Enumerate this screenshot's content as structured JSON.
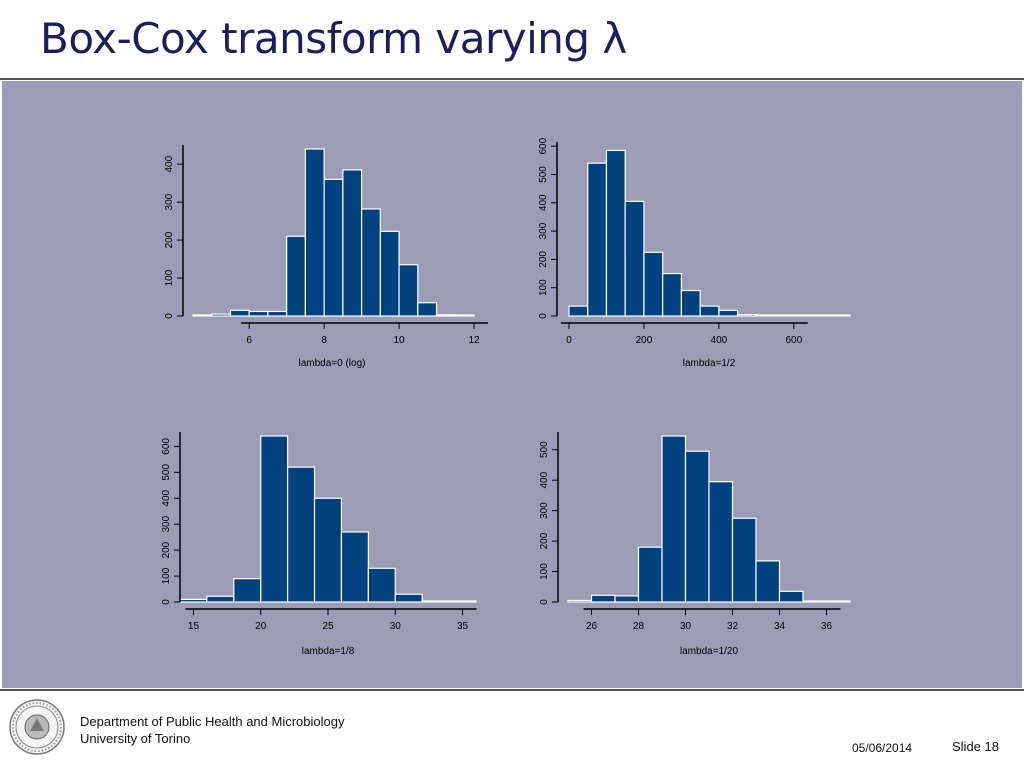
{
  "slide": {
    "title": "Box-Cox transform varying λ",
    "footer_department": "Department of Public Health and Microbiology",
    "footer_university": "University of Torino",
    "date": "05/06/2014",
    "slide_number": "Slide 18",
    "logo_icon": "university-seal-icon"
  },
  "colors": {
    "bar_fill": "#04417f",
    "bar_stroke": "#ffffff",
    "panel_bg": "#9c9cb6",
    "axis": "#000000",
    "title": "#1a1f5c"
  },
  "chart_data": [
    {
      "type": "bar",
      "xlabel": "lambda=0 (log)",
      "ylabel": "",
      "xlim": [
        4.5,
        12
      ],
      "ylim": [
        0,
        440
      ],
      "xticks": [
        6,
        8,
        10,
        12
      ],
      "yticks": [
        0,
        100,
        200,
        300,
        400
      ],
      "bin_edges": [
        4.5,
        5,
        5.5,
        6,
        6.5,
        7,
        7.5,
        8,
        8.5,
        9,
        9.5,
        10,
        10.5,
        11,
        11.5,
        12
      ],
      "values": [
        2,
        5,
        15,
        12,
        12,
        210,
        440,
        360,
        385,
        282,
        223,
        135,
        35,
        3,
        1
      ]
    },
    {
      "type": "bar",
      "xlabel": "lambda=1/2",
      "ylabel": "",
      "xlim": [
        0,
        750
      ],
      "ylim": [
        0,
        590
      ],
      "xticks": [
        0,
        200,
        400,
        600
      ],
      "yticks": [
        0,
        100,
        200,
        300,
        400,
        500,
        600
      ],
      "bin_edges": [
        0,
        50,
        100,
        150,
        200,
        250,
        300,
        350,
        400,
        450,
        500,
        550,
        600,
        650,
        700,
        750
      ],
      "values": [
        35,
        540,
        585,
        405,
        225,
        150,
        90,
        35,
        20,
        5,
        2,
        1,
        1,
        1,
        0
      ]
    },
    {
      "type": "bar",
      "xlabel": "lambda=1/8",
      "ylabel": "",
      "xlim": [
        14,
        36
      ],
      "ylim": [
        0,
        640
      ],
      "xticks": [
        15,
        20,
        25,
        30,
        35
      ],
      "yticks": [
        0,
        100,
        200,
        300,
        400,
        500,
        600
      ],
      "bin_edges": [
        14,
        16,
        18,
        20,
        22,
        24,
        26,
        28,
        30,
        32,
        34,
        36
      ],
      "values": [
        10,
        22,
        90,
        640,
        520,
        400,
        270,
        130,
        30,
        2,
        1
      ]
    },
    {
      "type": "bar",
      "xlabel": "lambda=1/20",
      "ylabel": "",
      "xlim": [
        25,
        37
      ],
      "ylim": [
        0,
        545
      ],
      "xticks": [
        26,
        28,
        30,
        32,
        34,
        36
      ],
      "yticks": [
        0,
        100,
        200,
        300,
        400,
        500
      ],
      "bin_edges": [
        25,
        26,
        27,
        28,
        29,
        30,
        31,
        32,
        33,
        34,
        35,
        36,
        37
      ],
      "values": [
        5,
        22,
        20,
        180,
        545,
        495,
        395,
        275,
        135,
        35,
        1,
        1
      ]
    }
  ]
}
